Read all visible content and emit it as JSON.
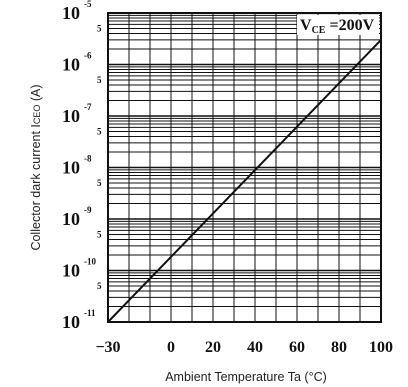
{
  "chart_data": {
    "type": "line",
    "xlabel": "Ambient Temperature Ta (°C)",
    "ylabel": "Collector dark current I",
    "ylabel_sub": "CEO",
    "ylabel_unit": " (A)",
    "xlim": [
      -30,
      100
    ],
    "ylim": [
      1e-11,
      1e-05
    ],
    "yscale": "log",
    "x_ticks": [
      "-30",
      "0",
      "20",
      "40",
      "60",
      "80",
      "100"
    ],
    "x_tick_values": [
      -30,
      0,
      20,
      40,
      60,
      80,
      100
    ],
    "y_tick_base": "10",
    "y_tick_exponents": [
      "-5",
      "-6",
      "-7",
      "-8",
      "-9",
      "-10",
      "-11"
    ],
    "y_minor_label": "5",
    "grid": true,
    "annotation": {
      "prefix": "V",
      "sub": "CE",
      "suffix": " =200V"
    },
    "series": [
      {
        "x": [
          -30,
          100
        ],
        "y": [
          1e-11,
          3e-06
        ]
      }
    ]
  }
}
